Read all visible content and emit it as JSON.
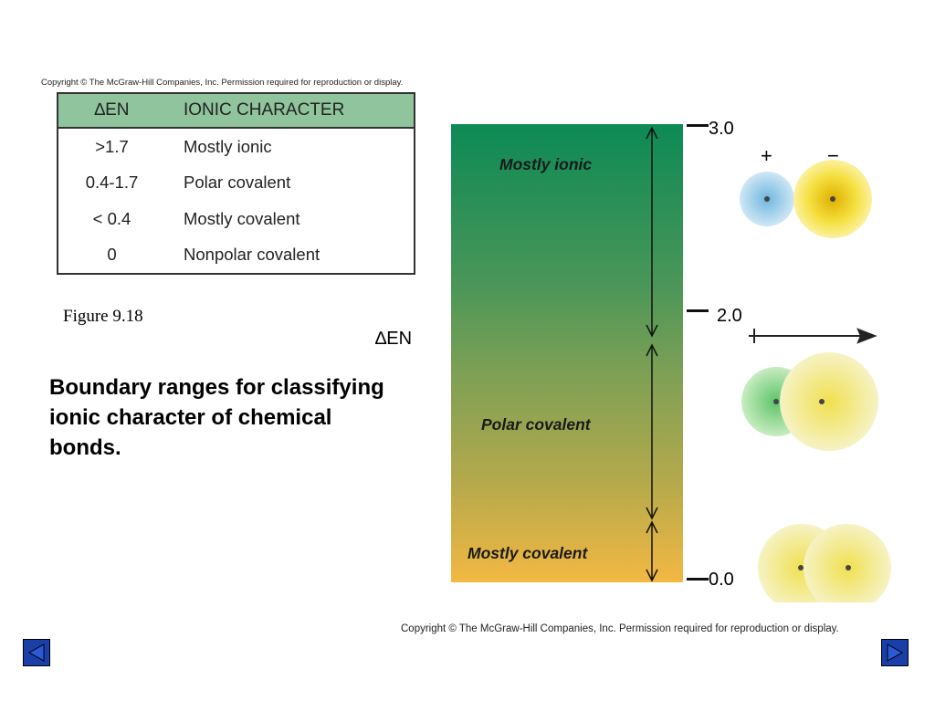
{
  "copyright": "Copyright © The McGraw-Hill Companies, Inc. Permission required for reproduction or display.",
  "table": {
    "headers": [
      "∆EN",
      "IONIC CHARACTER"
    ],
    "rows": [
      [
        ">1.7",
        "Mostly ionic"
      ],
      [
        "0.4-1.7",
        "Polar covalent"
      ],
      [
        "< 0.4",
        "Mostly covalent"
      ],
      [
        "0",
        "Nonpolar covalent"
      ]
    ]
  },
  "figure_label": "Figure 9.18",
  "caption": "Boundary ranges for classifying ionic character of chemical bonds.",
  "axis_label": "∆EN",
  "bar_labels": [
    "Mostly ionic",
    "Polar covalent",
    "Mostly covalent"
  ],
  "ticks": [
    "3.0",
    "2.0",
    "0.0"
  ],
  "charges": [
    "+",
    "−"
  ],
  "colors": {
    "table_header": "#8fc49c",
    "bar_top": "#0d8a55",
    "bar_bottom": "#f3b842",
    "nav": "#1a3fa8"
  }
}
